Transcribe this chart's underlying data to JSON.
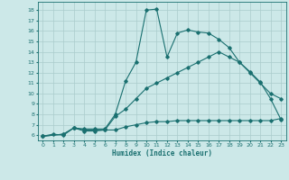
{
  "title": "",
  "xlabel": "Humidex (Indice chaleur)",
  "bg_color": "#cce8e8",
  "grid_color": "#aacccc",
  "line_color": "#1a7070",
  "xlim": [
    -0.5,
    23.5
  ],
  "ylim": [
    5.5,
    18.8
  ],
  "xticks": [
    0,
    1,
    2,
    3,
    4,
    5,
    6,
    7,
    8,
    9,
    10,
    11,
    12,
    13,
    14,
    15,
    16,
    17,
    18,
    19,
    20,
    21,
    22,
    23
  ],
  "yticks": [
    6,
    7,
    8,
    9,
    10,
    11,
    12,
    13,
    14,
    15,
    16,
    17,
    18
  ],
  "curve1_x": [
    0,
    1,
    2,
    3,
    4,
    5,
    6,
    7,
    8,
    9,
    10,
    11,
    12,
    13,
    14,
    15,
    16,
    17,
    18,
    19,
    20,
    21,
    22,
    23
  ],
  "curve1_y": [
    5.9,
    6.1,
    6.0,
    6.7,
    6.6,
    6.6,
    6.6,
    8.0,
    11.2,
    13.0,
    18.0,
    18.1,
    13.5,
    15.8,
    16.1,
    15.9,
    15.8,
    15.2,
    14.4,
    13.0,
    12.1,
    11.1,
    9.5,
    7.5
  ],
  "curve2_x": [
    0,
    2,
    3,
    4,
    5,
    6,
    7,
    8,
    9,
    10,
    11,
    12,
    13,
    14,
    15,
    16,
    17,
    18,
    19,
    20,
    21,
    22,
    23
  ],
  "curve2_y": [
    5.9,
    6.1,
    6.7,
    6.5,
    6.5,
    6.5,
    7.8,
    8.5,
    9.5,
    10.5,
    11.0,
    11.5,
    12.0,
    12.5,
    13.0,
    13.5,
    14.0,
    13.5,
    13.0,
    12.0,
    11.0,
    10.0,
    9.5
  ],
  "curve3_x": [
    0,
    2,
    3,
    4,
    5,
    6,
    7,
    8,
    9,
    10,
    11,
    12,
    13,
    14,
    15,
    16,
    17,
    18,
    19,
    20,
    21,
    22,
    23
  ],
  "curve3_y": [
    5.9,
    6.1,
    6.7,
    6.4,
    6.4,
    6.5,
    6.5,
    6.8,
    7.0,
    7.2,
    7.3,
    7.3,
    7.4,
    7.4,
    7.4,
    7.4,
    7.4,
    7.4,
    7.4,
    7.4,
    7.4,
    7.4,
    7.6
  ]
}
